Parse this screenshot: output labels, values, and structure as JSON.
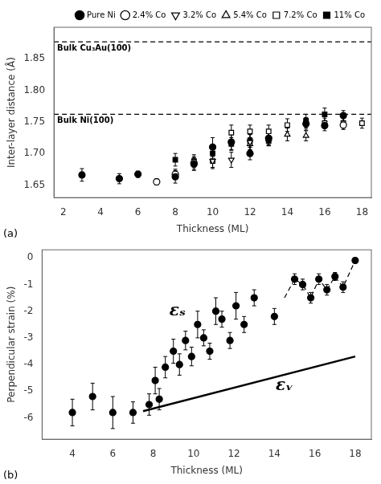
{
  "chart_data": [
    {
      "type": "scatter",
      "x_label": "Thickness (ML)",
      "y_label": "Inter-layer distance (Å)",
      "xlim": [
        1.5,
        18.5
      ],
      "ylim": [
        1.63,
        1.9
      ],
      "xticks": [
        2,
        4,
        6,
        8,
        10,
        12,
        14,
        16,
        18
      ],
      "yticks": [
        1.65,
        {
          "value": 1.7,
          "label": "1.70"
        },
        1.75,
        {
          "value": 1.8,
          "label": "1.80"
        },
        1.85
      ],
      "grid": false,
      "legend": "upper right",
      "annotations": [
        {
          "text": "Bulk Cu₃Au(100)",
          "y": 1.877,
          "line_style": "dashed"
        },
        {
          "text": "Bulk Ni(100)",
          "y": 1.762,
          "line_style": "dashed"
        },
        {
          "text": "(a)"
        }
      ],
      "series": [
        {
          "name": "Pure Ni",
          "color": "#000000",
          "marker": "filled_circle",
          "x": [
            3,
            5,
            6,
            8,
            9,
            10,
            11,
            12,
            13,
            15,
            16,
            17
          ],
          "values": [
            1.666,
            1.66,
            1.667,
            1.663,
            1.683,
            1.71,
            1.718,
            1.7,
            1.724,
            1.747,
            1.744,
            1.76
          ],
          "yerr": [
            0.01,
            0.008,
            0.005,
            0.01,
            0.01,
            0.015,
            0.012,
            0.01,
            0.01,
            0.01,
            0.008,
            0.008
          ]
        },
        {
          "name": "2.4% Co",
          "color": "#000000",
          "marker": "open_circle",
          "x": [
            7,
            8,
            9,
            17
          ],
          "values": [
            1.655,
            1.667,
            1.685,
            1.745
          ],
          "yerr": [
            0.005,
            0.008,
            0.01,
            0.007
          ]
        },
        {
          "name": "3.2% Co",
          "color": "#000000",
          "marker": "open_triangle_down",
          "x": [
            10,
            11,
            12,
            13
          ],
          "values": [
            1.688,
            1.69,
            1.718,
            1.723
          ],
          "yerr": [
            0.01,
            0.012,
            0.012,
            0.01
          ]
        },
        {
          "name": "5.4% Co",
          "color": "#000000",
          "marker": "open_triangle_up",
          "x": [
            12,
            13,
            14,
            15
          ],
          "values": [
            1.715,
            1.723,
            1.73,
            1.728
          ],
          "yerr": [
            0.01,
            0.01,
            0.01,
            0.008
          ]
        },
        {
          "name": "7.2% Co",
          "color": "#000000",
          "marker": "open_square",
          "x": [
            10,
            11,
            12,
            13,
            14,
            15,
            16,
            17,
            18
          ],
          "values": [
            1.688,
            1.733,
            1.735,
            1.735,
            1.745,
            1.748,
            1.748,
            1.748,
            1.748
          ],
          "yerr": [
            0.012,
            0.012,
            0.01,
            0.01,
            0.01,
            0.008,
            0.008,
            0.008,
            0.008
          ]
        },
        {
          "name": "11% Co",
          "color": "#000000",
          "marker": "filled_square",
          "x": [
            8,
            9,
            10,
            11,
            12,
            13,
            15,
            16
          ],
          "values": [
            1.69,
            1.688,
            1.7,
            1.715,
            1.72,
            1.72,
            1.752,
            1.762
          ],
          "yerr": [
            0.01,
            0.01,
            0.01,
            0.01,
            0.01,
            0.008,
            0.01,
            0.01
          ]
        }
      ]
    },
    {
      "type": "scatter",
      "x_label": "Thickness (ML)",
      "y_label": "Perpendicular strain (%)",
      "xlim": [
        2.5,
        18.8
      ],
      "ylim": [
        -6.8,
        0.3
      ],
      "xticks": [
        4,
        6,
        8,
        10,
        12,
        14,
        16,
        18
      ],
      "yticks": [
        0,
        -1,
        -2,
        -3,
        -4,
        -5,
        -6
      ],
      "grid": false,
      "annotations": [
        {
          "text": "εₛ",
          "x": 9.2,
          "y": -2.0
        },
        {
          "text": "εᵥ",
          "x": 14.5,
          "y": -4.8
        },
        {
          "text": "(b)"
        }
      ],
      "series": [
        {
          "type": "line",
          "line_style": "solid",
          "color": "#000000",
          "x": [
            7.5,
            18
          ],
          "values": [
            -5.75,
            -3.7
          ]
        },
        {
          "type": "line",
          "line_style": "dashed",
          "color": "#000000",
          "x": [
            14.5,
            15.0,
            15.4,
            15.8,
            16.2,
            16.6,
            17.0,
            17.4,
            18.0
          ],
          "values": [
            -1.5,
            -0.8,
            -1.0,
            -1.5,
            -0.8,
            -1.2,
            -0.7,
            -1.1,
            -0.1
          ]
        },
        {
          "type": "scatter",
          "marker": "filled_circle",
          "color": "#000000",
          "x": [
            4,
            5,
            6,
            7,
            7.8,
            8.1,
            8.3,
            8.6,
            9.0,
            9.3,
            9.6,
            9.9,
            10.2,
            10.5,
            10.8,
            11.1,
            11.4,
            11.8,
            12.1,
            12.5,
            13.0,
            14.0,
            15.0,
            15.4,
            15.8,
            16.2,
            16.6,
            17.0,
            17.4,
            18.0
          ],
          "values": [
            -5.8,
            -5.2,
            -5.8,
            -5.8,
            -5.5,
            -4.6,
            -5.3,
            -4.1,
            -3.5,
            -4.0,
            -3.1,
            -3.7,
            -2.5,
            -3.0,
            -3.5,
            -2.0,
            -2.3,
            -3.1,
            -1.8,
            -2.5,
            -1.5,
            -2.2,
            -0.8,
            -1.0,
            -1.5,
            -0.8,
            -1.2,
            -0.7,
            -1.1,
            -0.1
          ],
          "yerr": [
            0.5,
            0.5,
            0.6,
            0.4,
            0.4,
            0.5,
            0.4,
            0.4,
            0.45,
            0.4,
            0.35,
            0.35,
            0.5,
            0.3,
            0.3,
            0.5,
            0.3,
            0.3,
            0.5,
            0.3,
            0.3,
            0.3,
            0.2,
            0.2,
            0.2,
            0.2,
            0.2,
            0.15,
            0.2,
            0.1
          ]
        }
      ]
    }
  ]
}
